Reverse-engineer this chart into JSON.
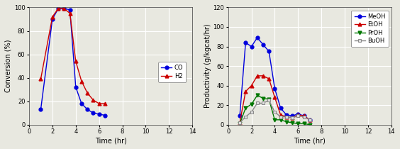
{
  "left_chart": {
    "xlabel": "Time (hr)",
    "ylabel": "Conversion (%)",
    "xlim": [
      0,
      14
    ],
    "ylim": [
      0,
      100
    ],
    "xticks": [
      0,
      2,
      4,
      6,
      8,
      10,
      12,
      14
    ],
    "yticks": [
      0,
      20,
      40,
      60,
      80,
      100
    ],
    "CO": {
      "x": [
        1,
        2,
        2.5,
        3,
        3.5,
        4,
        4.5,
        5,
        5.5,
        6,
        6.5
      ],
      "y": [
        13,
        90,
        99,
        99,
        98,
        32,
        18,
        13,
        10,
        9,
        8
      ],
      "color": "#0000dd",
      "marker": "o",
      "label": "CO"
    },
    "H2": {
      "x": [
        1,
        2,
        2.5,
        3,
        3.5,
        4,
        4.5,
        5,
        5.5,
        6,
        6.5
      ],
      "y": [
        39,
        92,
        99,
        99,
        95,
        54,
        37,
        27,
        21,
        18,
        18
      ],
      "color": "#cc0000",
      "marker": "^",
      "label": "H2"
    }
  },
  "right_chart": {
    "xlabel": "Time (hr)",
    "ylabel": "Productivity (g/kgcat/hr)",
    "xlim": [
      0,
      14
    ],
    "ylim": [
      0,
      120
    ],
    "xticks": [
      0,
      2,
      4,
      6,
      8,
      10,
      12,
      14
    ],
    "yticks": [
      0,
      20,
      40,
      60,
      80,
      100,
      120
    ],
    "MeOH": {
      "x": [
        1,
        1.5,
        2,
        2.5,
        3,
        3.5,
        4,
        4.5,
        5,
        5.5,
        6,
        6.5,
        7
      ],
      "y": [
        9,
        84,
        80,
        89,
        82,
        75,
        37,
        17,
        10,
        9,
        11,
        9,
        5
      ],
      "color": "#0000dd",
      "marker": "o",
      "label": "MeOH"
    },
    "EtOH": {
      "x": [
        1,
        1.5,
        2,
        2.5,
        3,
        3.5,
        4,
        4.5,
        5,
        5.5,
        6,
        6.5,
        7
      ],
      "y": [
        2,
        34,
        40,
        50,
        50,
        47,
        28,
        10,
        8,
        7,
        10,
        9,
        5
      ],
      "color": "#cc0000",
      "marker": "^",
      "label": "EtOH"
    },
    "PrOH": {
      "x": [
        1,
        1.5,
        2,
        2.5,
        3,
        3.5,
        4,
        4.5,
        5,
        5.5,
        6,
        6.5,
        7
      ],
      "y": [
        1,
        17,
        21,
        30,
        27,
        26,
        5,
        5,
        3,
        2,
        1,
        1,
        0
      ],
      "color": "#007700",
      "marker": "v",
      "label": "PrOH"
    },
    "BuOH": {
      "x": [
        1,
        1.5,
        2,
        2.5,
        3,
        3.5,
        4,
        4.5,
        5,
        5.5,
        6,
        6.5,
        7
      ],
      "y": [
        2,
        8,
        13,
        22,
        22,
        25,
        13,
        8,
        8,
        7,
        9,
        8,
        5
      ],
      "color": "#888888",
      "marker": "s",
      "label": "BuOH"
    }
  },
  "bg_color": "#e8e8e0",
  "ax_bg_color": "#e8e8e0",
  "grid_color": "white",
  "figsize": [
    5.64,
    2.1
  ],
  "dpi": 100
}
